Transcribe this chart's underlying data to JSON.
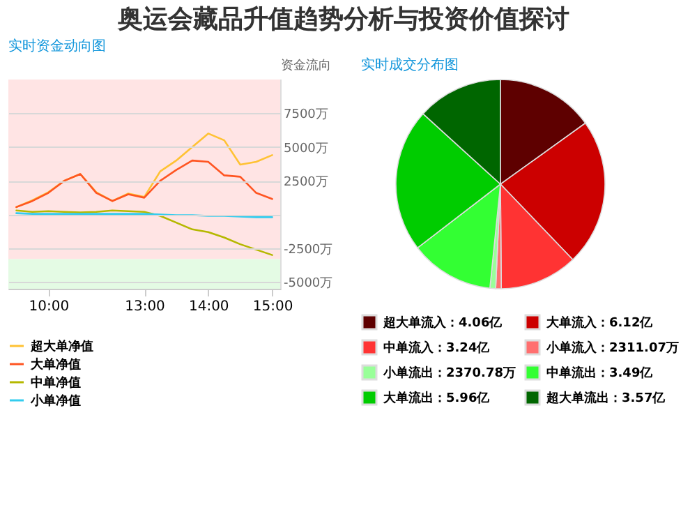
{
  "chart_data": [
    {
      "type": "line",
      "title": "实时资金动向图",
      "ylabel": "资金流向",
      "annotations": [
        "奥运会藏品升值趋势分析与投资价值探讨"
      ],
      "categories": [
        null,
        null,
        "10:00",
        null,
        null,
        null,
        null,
        null,
        "13:00",
        null,
        null,
        null,
        "14:00",
        null,
        null,
        null,
        "15:00"
      ],
      "ylim": [
        -5500,
        10000
      ],
      "yticks": [
        {
          "value": 7500,
          "label": "7500万"
        },
        {
          "value": 5000,
          "label": "5000万"
        },
        {
          "value": 2500,
          "label": "2500万"
        },
        {
          "value": 0,
          "label": null
        },
        {
          "value": -2500,
          "label": "-2500万"
        },
        {
          "value": -5000,
          "label": "-5000万"
        }
      ],
      "grid": "y",
      "legend": "bottom",
      "bands": [
        {
          "axis": "y",
          "from": -3300,
          "to": 10000,
          "color": "#ffe4e4"
        },
        {
          "axis": "y",
          "from": -5500,
          "to": -3300,
          "color": "#e4fbe4"
        }
      ],
      "series": [
        {
          "name": "超大单净值",
          "color": "#ffc233",
          "values": [
            550,
            1050,
            1650,
            2500,
            3000,
            1650,
            1000,
            1550,
            1300,
            3200,
            4000,
            5000,
            6000,
            5500,
            3700,
            3900,
            4400
          ]
        },
        {
          "name": "大单净值",
          "color": "#ff5522",
          "values": [
            550,
            1000,
            1600,
            2500,
            3000,
            1600,
            1000,
            1500,
            1250,
            2500,
            3300,
            4000,
            3900,
            2900,
            2800,
            1600,
            1150
          ]
        },
        {
          "name": "中单净值",
          "color": "#b5b800",
          "values": [
            300,
            200,
            250,
            200,
            150,
            200,
            300,
            250,
            200,
            -100,
            -600,
            -1100,
            -1300,
            -1700,
            -2200,
            -2600,
            -3000
          ]
        },
        {
          "name": "小单净值",
          "color": "#33ccee",
          "values": [
            100,
            50,
            50,
            50,
            50,
            50,
            50,
            50,
            50,
            0,
            -50,
            -50,
            -100,
            -100,
            -150,
            -200,
            -200
          ]
        }
      ]
    },
    {
      "type": "pie",
      "title": "实时成交分布图",
      "legend": "bottom",
      "categories": [
        "超大单流入：4.06亿",
        "大单流入：6.12亿",
        "中单流入：3.24亿",
        "小单流入：2311.07万",
        "小单流出：2370.78万",
        "中单流出：3.49亿",
        "大单流出：5.96亿",
        "超大单流出：3.57亿"
      ],
      "values": [
        40600,
        61200,
        32400,
        2311.07,
        2370.78,
        34900,
        59600,
        35700
      ],
      "colors": [
        "#5e0000",
        "#cc0000",
        "#ff3333",
        "#ff6f6f",
        "#99ff99",
        "#33ff33",
        "#00cc00",
        "#006600"
      ]
    }
  ]
}
